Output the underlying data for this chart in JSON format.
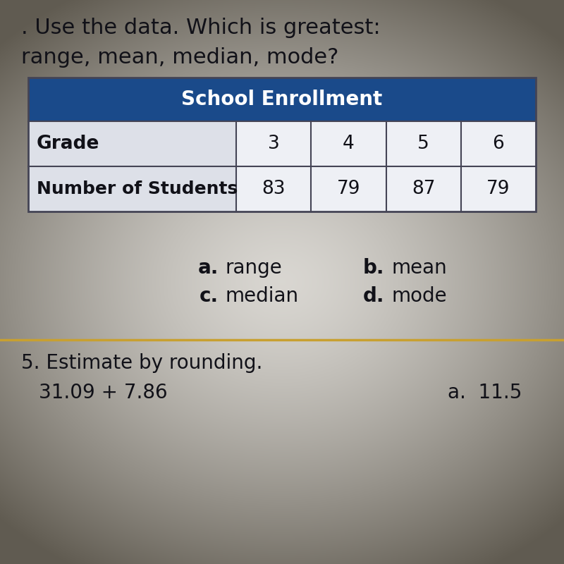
{
  "title_line1": ". Use the data. Which is greatest:",
  "title_line2": "range, mean, median, mode?",
  "table_title": "School Enrollment",
  "table_header_bg": "#1a4a8a",
  "table_header_text_color": "#ffffff",
  "table_row1_label": "Grade",
  "table_row2_label": "Number of Students",
  "grades": [
    "3",
    "4",
    "5",
    "6"
  ],
  "students": [
    "83",
    "79",
    "87",
    "79"
  ],
  "row_label_bg": "#dde0e8",
  "cell_bg": "#eef0f5",
  "cell_border_color": "#333344",
  "answer_options": [
    [
      "a.",
      "range",
      "b.",
      "mean"
    ],
    [
      "c.",
      "median",
      "d.",
      "mode"
    ]
  ],
  "footer_line1": "5. Estimate by rounding.",
  "footer_line2": "31.09 + 7.86",
  "footer_answer": "a.  11.5",
  "bg_center_color": "#d8d5cc",
  "bg_edge_color": "#6b6458",
  "paper_center_color": "#e8e5de",
  "separator_color": "#c8a030",
  "title_fontsize": 22,
  "table_title_fontsize": 20,
  "cell_fontsize": 19,
  "answer_fontsize": 20,
  "footer_fontsize": 20,
  "text_color": "#111118"
}
